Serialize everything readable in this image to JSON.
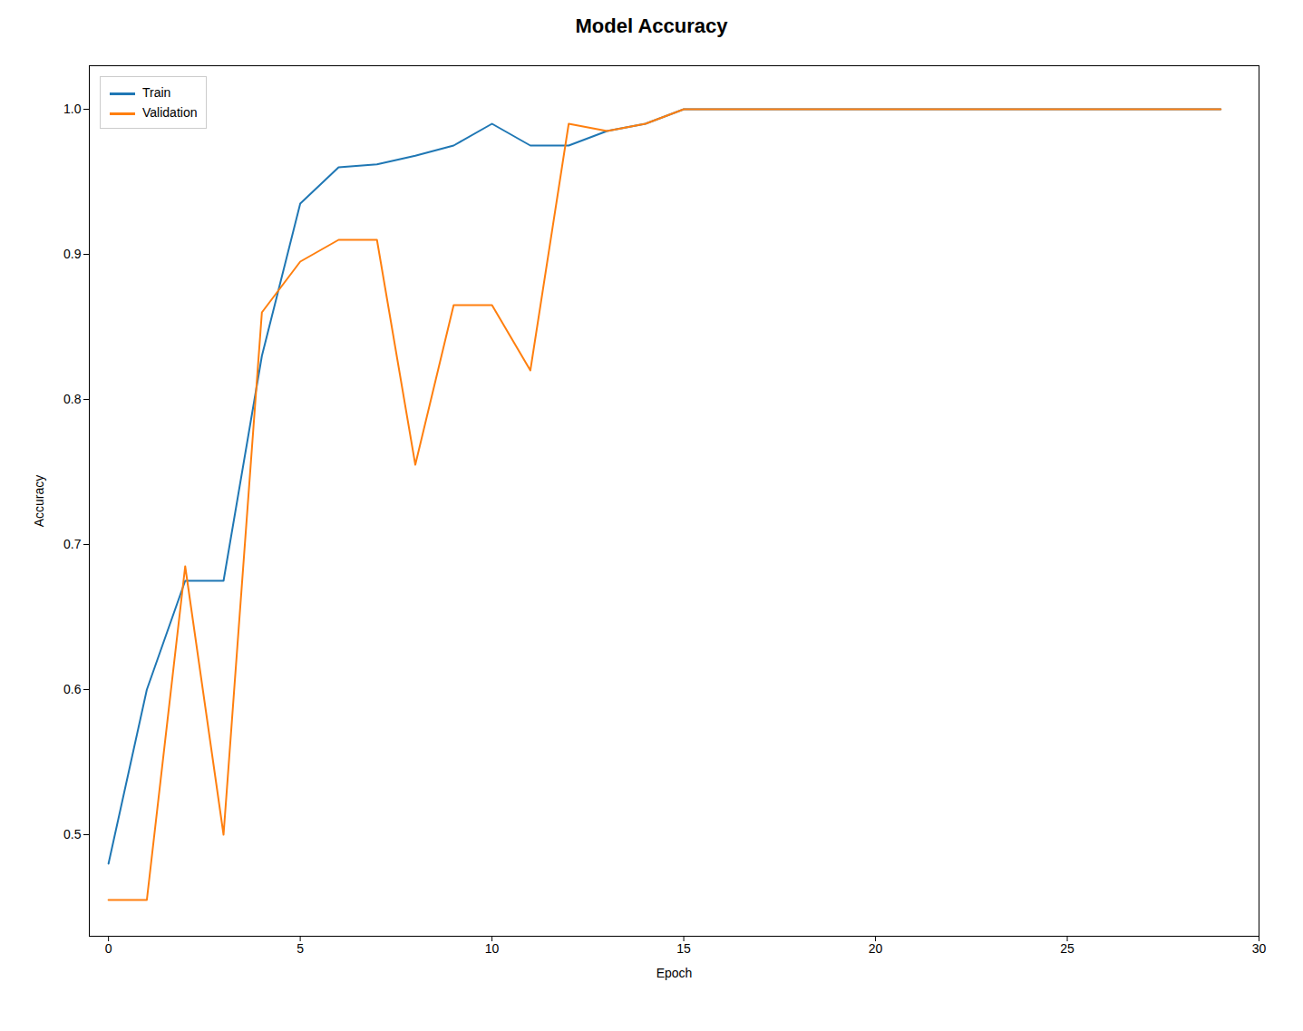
{
  "chart_data": {
    "type": "line",
    "title": "Model Accuracy",
    "xlabel": "Epoch",
    "ylabel": "Accuracy",
    "x": [
      0,
      1,
      2,
      3,
      4,
      5,
      6,
      7,
      8,
      9,
      10,
      11,
      12,
      13,
      14,
      15,
      16,
      17,
      18,
      19,
      20,
      21,
      22,
      23,
      24,
      25,
      26,
      27,
      28,
      29
    ],
    "series": [
      {
        "name": "Train",
        "color": "#1f77b4",
        "values": [
          0.48,
          0.6,
          0.675,
          0.675,
          0.83,
          0.935,
          0.96,
          0.962,
          0.968,
          0.975,
          0.99,
          0.975,
          0.975,
          0.985,
          0.99,
          1.0,
          1.0,
          1.0,
          1.0,
          1.0,
          1.0,
          1.0,
          1.0,
          1.0,
          1.0,
          1.0,
          1.0,
          1.0,
          1.0,
          1.0
        ]
      },
      {
        "name": "Validation",
        "color": "#ff7f0e",
        "values": [
          0.455,
          0.455,
          0.685,
          0.5,
          0.86,
          0.895,
          0.91,
          0.91,
          0.755,
          0.865,
          0.865,
          0.82,
          0.99,
          0.985,
          0.99,
          1.0,
          1.0,
          1.0,
          1.0,
          1.0,
          1.0,
          1.0,
          1.0,
          1.0,
          1.0,
          1.0,
          1.0,
          1.0,
          1.0,
          1.0
        ]
      }
    ],
    "xlim": [
      -0.5,
      30
    ],
    "xticks": [
      0,
      5,
      10,
      15,
      20,
      25,
      30
    ],
    "ylim": [
      0.43,
      1.03
    ],
    "yticks": [
      0.5,
      0.6,
      0.7,
      0.8,
      0.9,
      {
        "value": 1,
        "label": "1.0"
      }
    ],
    "grid": false,
    "legend": "upper left"
  }
}
